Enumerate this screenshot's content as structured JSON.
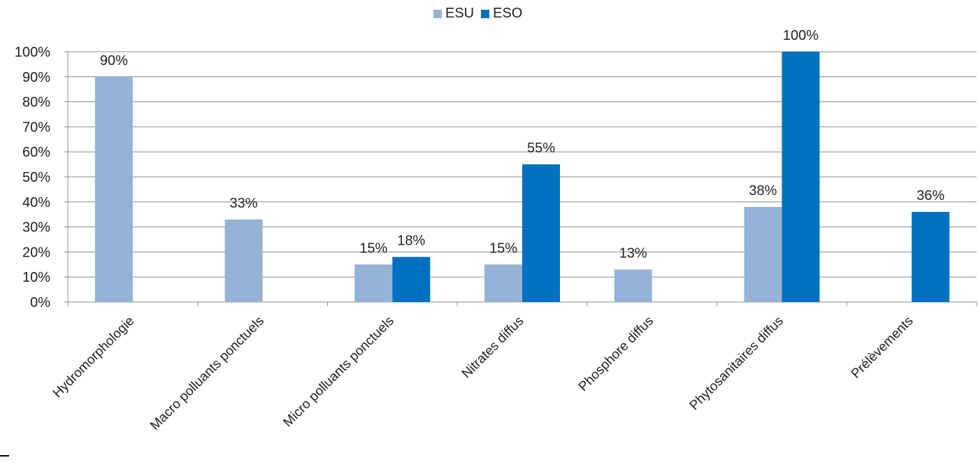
{
  "chart_data": {
    "type": "bar",
    "categories": [
      "Hydromorphologie",
      "Macro polluants ponctuels",
      "Micro polluants ponctuels",
      "Nitrates diffus",
      "Phosphore diffus",
      "Phytosanitaires diffus",
      "Prélèvements"
    ],
    "series": [
      {
        "name": "ESU",
        "color": "#95B3D7",
        "values": [
          90,
          33,
          15,
          15,
          13,
          38,
          null
        ],
        "labels": [
          "90%",
          "33%",
          "15%",
          "15%",
          "13%",
          "38%",
          ""
        ]
      },
      {
        "name": "ESO",
        "color": "#0070C0",
        "values": [
          null,
          null,
          18,
          55,
          null,
          100,
          36
        ],
        "labels": [
          "",
          "",
          "18%",
          "55%",
          "",
          "100%",
          "36%"
        ]
      }
    ],
    "ylim": [
      0,
      100
    ],
    "yticks": [
      "0%",
      "10%",
      "20%",
      "30%",
      "40%",
      "50%",
      "60%",
      "70%",
      "80%",
      "90%",
      "100%"
    ],
    "grid": true,
    "legend_position": "top-center"
  }
}
